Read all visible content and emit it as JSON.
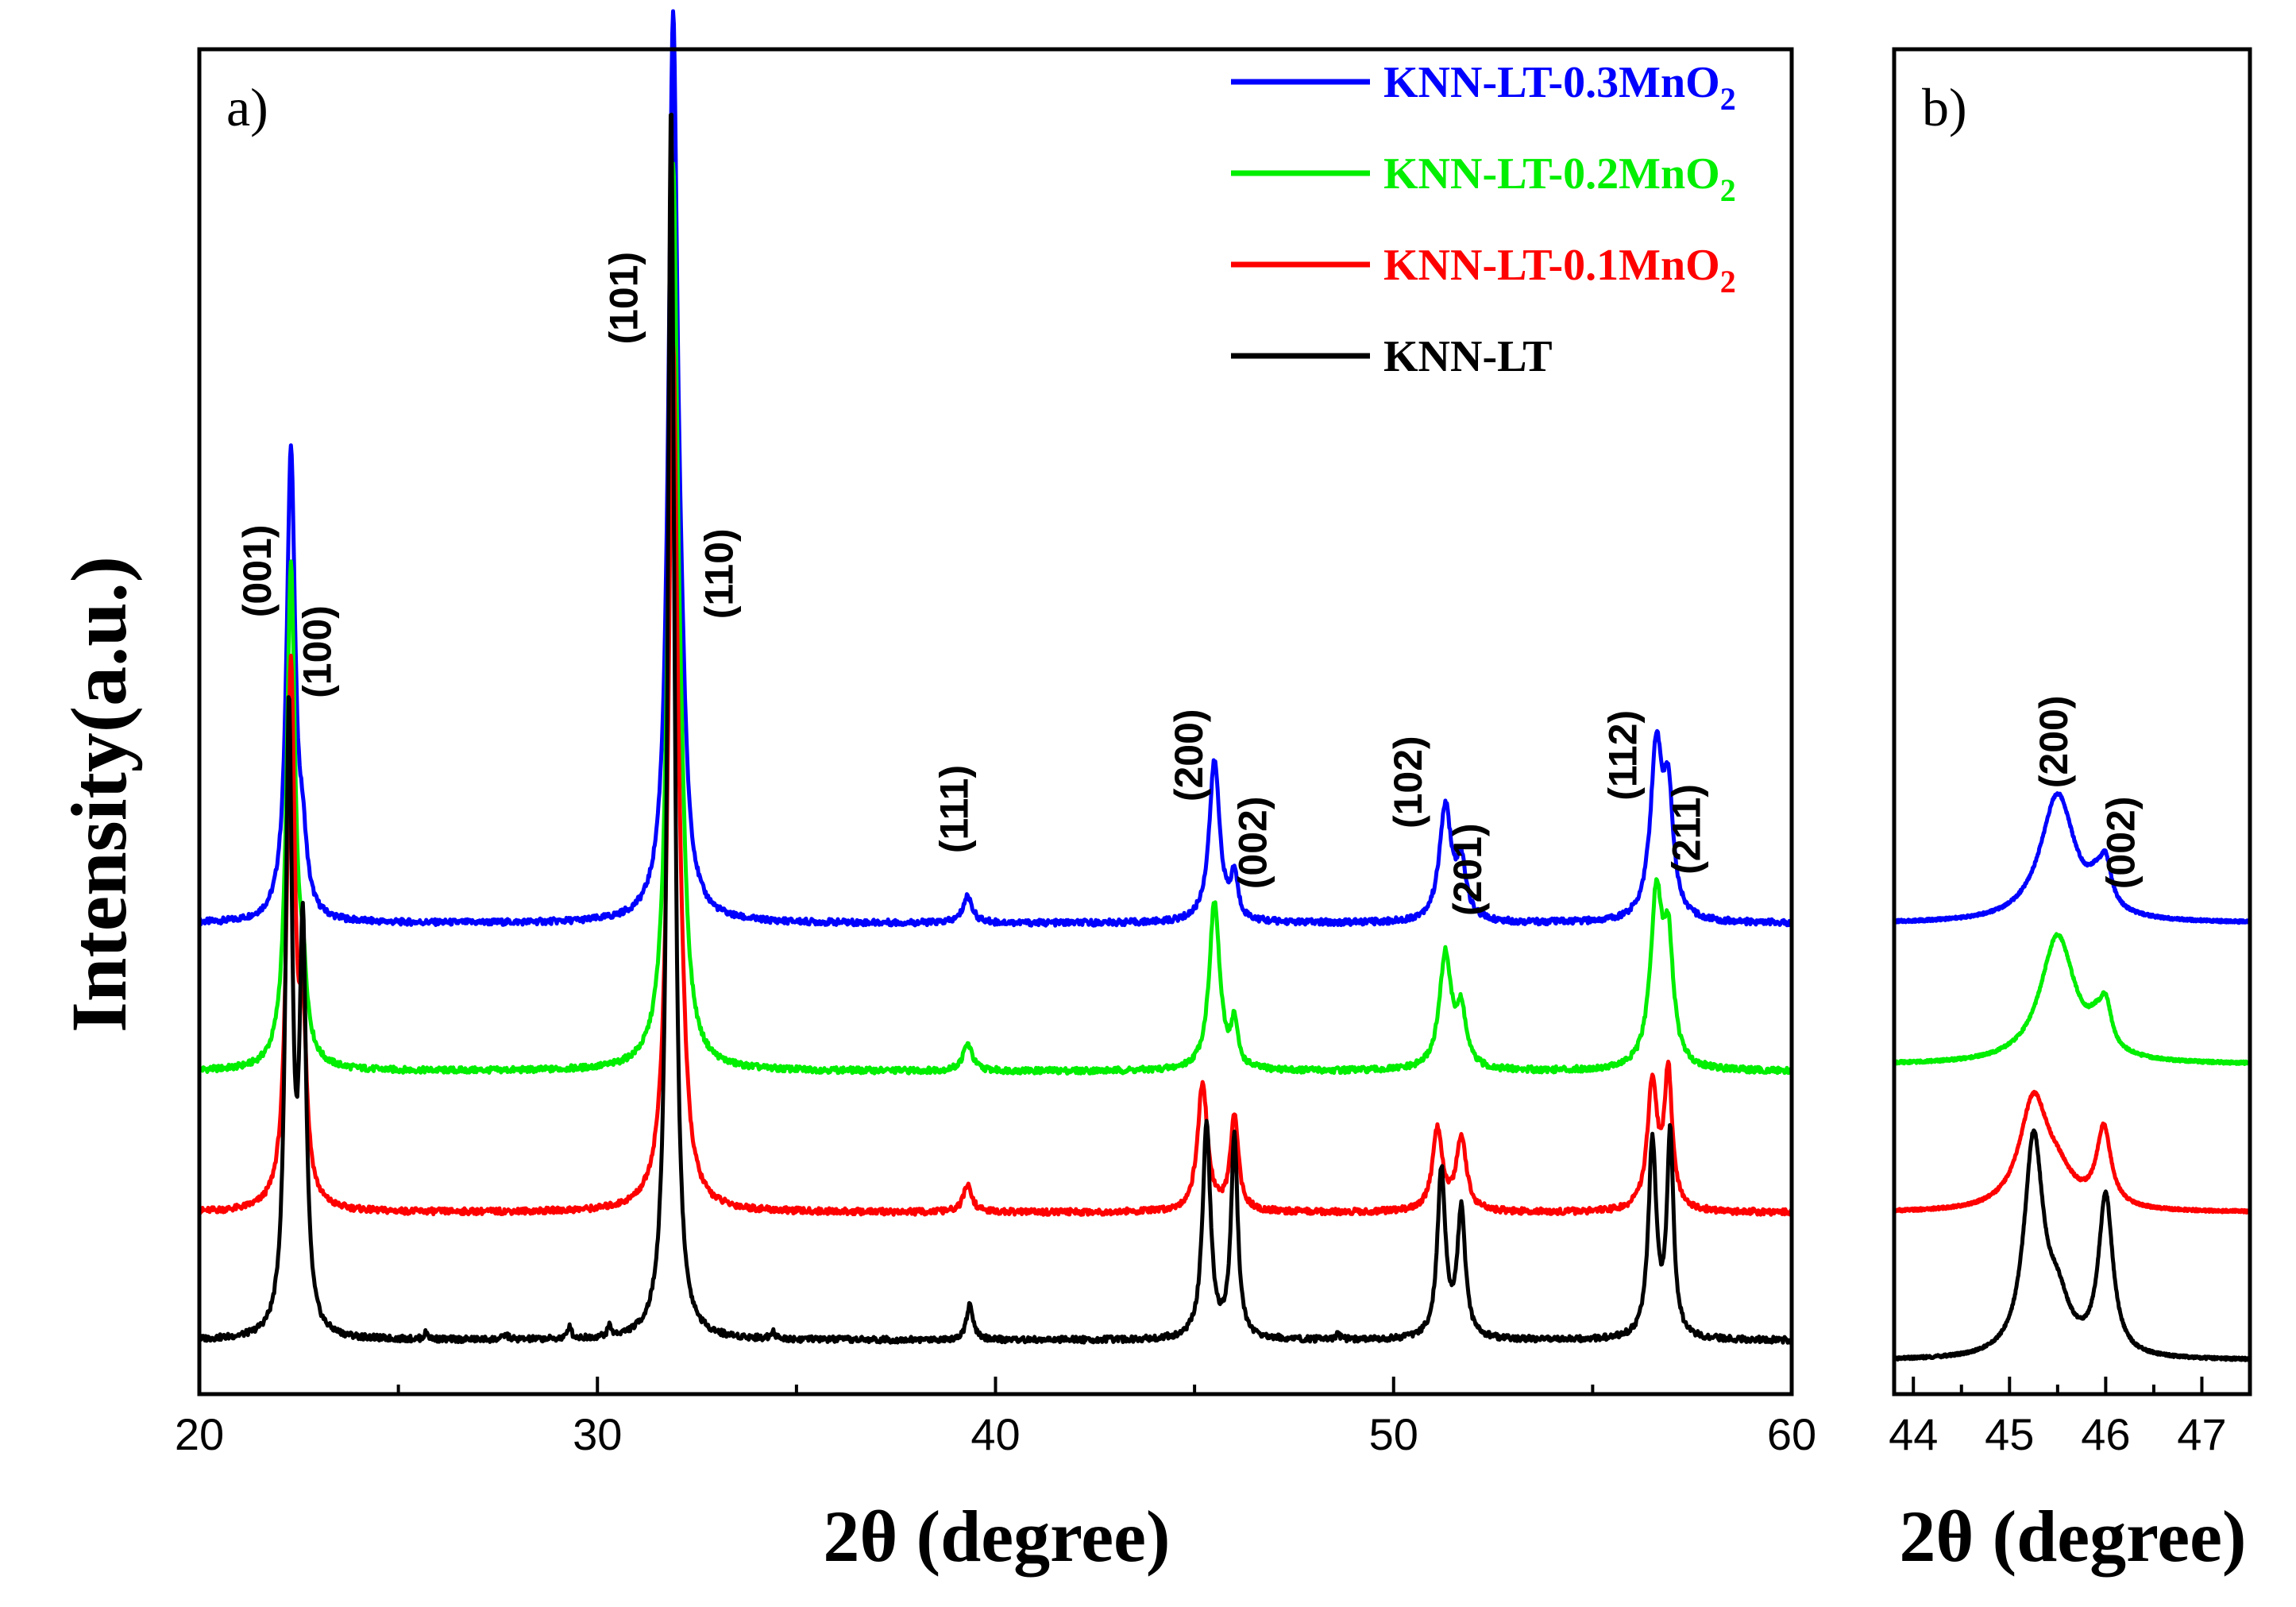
{
  "chart_data": [
    {
      "panel": "a)",
      "type": "line",
      "xlabel": "2θ (degree)",
      "ylabel": "Intensity(a.u.)",
      "xlim": [
        20,
        60
      ],
      "ylim": [
        0,
        10
      ],
      "xticks": [
        20,
        30,
        40,
        50,
        60
      ],
      "legend_position": "top-right",
      "series": [
        {
          "name": "KNN-LT-0.3MnO2",
          "legend_main": "KNN-LT-0.3MnO",
          "legend_sub": "2",
          "color": "#0000ff",
          "baseline": 3.5,
          "peaks": [
            [
              22.3,
              3.5,
              0.13
            ],
            [
              22.6,
              0.4,
              0.12
            ],
            [
              31.9,
              6.5,
              0.14
            ],
            [
              32.1,
              0.8,
              0.14
            ],
            [
              39.3,
              0.2,
              0.14
            ],
            [
              45.5,
              1.2,
              0.16
            ],
            [
              46.0,
              0.32,
              0.1
            ],
            [
              51.3,
              0.85,
              0.18
            ],
            [
              51.7,
              0.4,
              0.15
            ],
            [
              56.6,
              1.25,
              0.18
            ],
            [
              56.9,
              0.85,
              0.15
            ]
          ]
        },
        {
          "name": "KNN-LT-0.2MnO2",
          "legend_main": "KNN-LT-0.2MnO",
          "legend_sub": "2",
          "color": "#00ee00",
          "baseline": 2.4,
          "peaks": [
            [
              22.3,
              3.7,
              0.13
            ],
            [
              22.6,
              0.5,
              0.12
            ],
            [
              31.9,
              6.5,
              0.14
            ],
            [
              32.1,
              0.8,
              0.14
            ],
            [
              39.3,
              0.2,
              0.14
            ],
            [
              45.5,
              1.25,
              0.16
            ],
            [
              46.0,
              0.32,
              0.1
            ],
            [
              51.3,
              0.85,
              0.18
            ],
            [
              51.7,
              0.4,
              0.15
            ],
            [
              56.6,
              1.25,
              0.18
            ],
            [
              56.9,
              0.85,
              0.15
            ]
          ]
        },
        {
          "name": "KNN-LT-0.1MnO2",
          "legend_main": "KNN-LT-0.1MnO",
          "legend_sub": "2",
          "color": "#ff0000",
          "baseline": 1.35,
          "peaks": [
            [
              22.3,
              4.0,
              0.12
            ],
            [
              22.6,
              1.2,
              0.11
            ],
            [
              31.9,
              6.3,
              0.14
            ],
            [
              32.1,
              0.5,
              0.14
            ],
            [
              39.3,
              0.2,
              0.13
            ],
            [
              45.2,
              0.95,
              0.15
            ],
            [
              46.0,
              0.7,
              0.12
            ],
            [
              51.1,
              0.6,
              0.15
            ],
            [
              51.7,
              0.55,
              0.15
            ],
            [
              56.5,
              0.95,
              0.15
            ],
            [
              56.9,
              1.0,
              0.12
            ]
          ]
        },
        {
          "name": "KNN-LT",
          "legend_main": "KNN-LT",
          "legend_sub": "",
          "color": "#000000",
          "baseline": 0.4,
          "peaks": [
            [
              22.25,
              4.6,
              0.1
            ],
            [
              22.6,
              2.9,
              0.1
            ],
            [
              31.85,
              9.2,
              0.1
            ],
            [
              39.35,
              0.26,
              0.1
            ],
            [
              45.3,
              1.6,
              0.12
            ],
            [
              46.0,
              1.5,
              0.1
            ],
            [
              51.2,
              1.25,
              0.12
            ],
            [
              51.7,
              0.95,
              0.12
            ],
            [
              56.5,
              1.45,
              0.12
            ],
            [
              56.95,
              1.5,
              0.1
            ],
            [
              25.7,
              0.05,
              0.06
            ],
            [
              27.7,
              0.04,
              0.06
            ],
            [
              29.3,
              0.1,
              0.05
            ],
            [
              30.3,
              0.08,
              0.05
            ],
            [
              34.4,
              0.06,
              0.06
            ],
            [
              48.6,
              0.04,
              0.06
            ]
          ]
        }
      ],
      "annotations": [
        {
          "text": "(001)",
          "x": 21.8,
          "y": 6.12
        },
        {
          "text": "(100)",
          "x": 23.3,
          "y": 5.52
        },
        {
          "text": "(101)",
          "x": 31.0,
          "y": 8.15
        },
        {
          "text": "(110)",
          "x": 33.4,
          "y": 6.1
        },
        {
          "text": "(111)",
          "x": 39.3,
          "y": 4.35
        },
        {
          "text": "(200)",
          "x": 45.2,
          "y": 4.75
        },
        {
          "text": "(002)",
          "x": 46.8,
          "y": 4.1
        },
        {
          "text": "(102)",
          "x": 50.7,
          "y": 4.55
        },
        {
          "text": "(201)",
          "x": 52.2,
          "y": 3.9
        },
        {
          "text": "(112)",
          "x": 56.1,
          "y": 4.75
        },
        {
          "text": "(211)",
          "x": 57.7,
          "y": 4.2
        }
      ]
    },
    {
      "panel": "b)",
      "type": "line",
      "xlabel": "2θ (degree)",
      "xlim": [
        43.8,
        47.5
      ],
      "ylim": [
        0,
        10
      ],
      "xticks": [
        44,
        45,
        46,
        47
      ],
      "series": [
        {
          "name": "KNN-LT-0.3MnO2",
          "color": "#0000ff",
          "baseline": 3.5,
          "peaks": [
            [
              45.5,
              0.95,
              0.22
            ],
            [
              46.0,
              0.3,
              0.07
            ],
            [
              45.9,
              0.15,
              0.1
            ]
          ]
        },
        {
          "name": "KNN-LT-0.2MnO2",
          "color": "#00ee00",
          "baseline": 2.45,
          "peaks": [
            [
              45.5,
              0.95,
              0.22
            ],
            [
              46.0,
              0.3,
              0.07
            ],
            [
              45.9,
              0.15,
              0.1
            ]
          ]
        },
        {
          "name": "KNN-LT-0.1MnO2",
          "color": "#ff0000",
          "baseline": 1.35,
          "peaks": [
            [
              45.25,
              0.8,
              0.18
            ],
            [
              45.5,
              0.2,
              0.2
            ],
            [
              45.98,
              0.58,
              0.09
            ]
          ]
        },
        {
          "name": "KNN-LT",
          "color": "#000000",
          "baseline": 0.25,
          "peaks": [
            [
              45.25,
              1.6,
              0.12
            ],
            [
              45.5,
              0.35,
              0.15
            ],
            [
              46.0,
              1.18,
              0.09
            ]
          ]
        }
      ],
      "annotations": [
        {
          "text": "(200)",
          "x": 45.6,
          "y": 4.85
        },
        {
          "text": "(002)",
          "x": 46.3,
          "y": 4.1
        }
      ]
    }
  ]
}
